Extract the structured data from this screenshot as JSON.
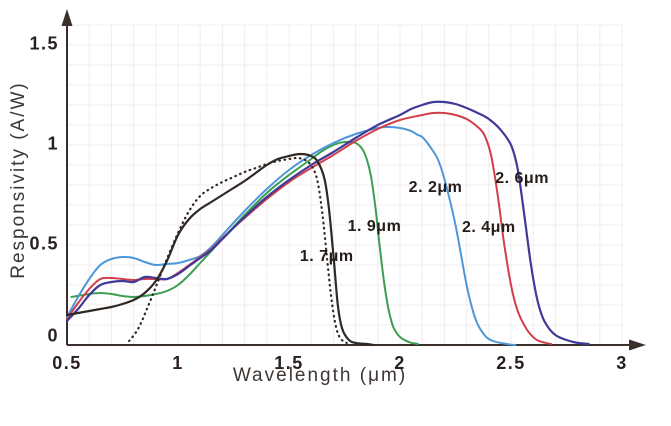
{
  "style": {
    "background": "#ffffff",
    "axis_color": "#3a2f2b",
    "grid_color": "#f2ecec",
    "tick_text_color": "#2a211e",
    "axis_title_color": "#3e3733",
    "curve_label_color": "#241d1a"
  },
  "chart_data": {
    "type": "line",
    "title": "",
    "xlabel": "Wavelength (μm)",
    "ylabel": "Responsivity (A/W)",
    "xlim": [
      0.5,
      3.05
    ],
    "ylim": [
      0,
      1.6
    ],
    "grid": {
      "visible": true,
      "step_x": 0.1,
      "step_y": 0.1
    },
    "legend_position": "none (labels placed next to curves)",
    "x_ticks": [
      {
        "label": "0.5",
        "value": 0.5
      },
      {
        "label": "1",
        "value": 1
      },
      {
        "label": "1.5",
        "value": 1.5
      },
      {
        "label": "2",
        "value": 2
      },
      {
        "label": "2.5",
        "value": 2.5
      },
      {
        "label": "3",
        "value": 3
      }
    ],
    "y_ticks": [
      {
        "label": "1.5",
        "value": 1.5
      },
      {
        "label": "1",
        "value": 1
      },
      {
        "label": "0.5",
        "value": 0.5
      },
      {
        "label": "0",
        "value": 0
      }
    ],
    "series": [
      {
        "id": "1-9um",
        "name": "1.9μm cutoff",
        "label": "1. 9μm",
        "label_pos": [
          1.885,
          0.59
        ],
        "color": "#3c9e50",
        "width": 2,
        "dash": "",
        "points": [
          [
            0.52,
            0.24
          ],
          [
            0.6,
            0.255
          ],
          [
            0.65,
            0.26
          ],
          [
            0.7,
            0.255
          ],
          [
            0.75,
            0.245
          ],
          [
            0.8,
            0.24
          ],
          [
            0.85,
            0.245
          ],
          [
            0.9,
            0.255
          ],
          [
            0.95,
            0.27
          ],
          [
            1.0,
            0.3
          ],
          [
            1.05,
            0.35
          ],
          [
            1.1,
            0.41
          ],
          [
            1.15,
            0.47
          ],
          [
            1.2,
            0.53
          ],
          [
            1.25,
            0.59
          ],
          [
            1.3,
            0.65
          ],
          [
            1.4,
            0.76
          ],
          [
            1.5,
            0.85
          ],
          [
            1.55,
            0.89
          ],
          [
            1.6,
            0.93
          ],
          [
            1.65,
            0.97
          ],
          [
            1.7,
            1.0
          ],
          [
            1.75,
            1.015
          ],
          [
            1.8,
            1.01
          ],
          [
            1.83,
            0.98
          ],
          [
            1.85,
            0.93
          ],
          [
            1.87,
            0.84
          ],
          [
            1.89,
            0.68
          ],
          [
            1.91,
            0.48
          ],
          [
            1.93,
            0.3
          ],
          [
            1.95,
            0.17
          ],
          [
            1.97,
            0.09
          ],
          [
            2.0,
            0.04
          ],
          [
            2.04,
            0.015
          ],
          [
            2.08,
            0.005
          ]
        ]
      },
      {
        "id": "2-2um",
        "name": "2.2μm cutoff",
        "label": "2. 2μm",
        "label_pos": [
          2.16,
          0.785
        ],
        "color": "#4e97d9",
        "width": 2,
        "dash": "",
        "points": [
          [
            0.5,
            0.14
          ],
          [
            0.55,
            0.24
          ],
          [
            0.6,
            0.33
          ],
          [
            0.65,
            0.4
          ],
          [
            0.7,
            0.43
          ],
          [
            0.75,
            0.44
          ],
          [
            0.8,
            0.435
          ],
          [
            0.85,
            0.415
          ],
          [
            0.9,
            0.4
          ],
          [
            0.95,
            0.405
          ],
          [
            1.0,
            0.41
          ],
          [
            1.05,
            0.425
          ],
          [
            1.1,
            0.445
          ],
          [
            1.15,
            0.49
          ],
          [
            1.2,
            0.55
          ],
          [
            1.3,
            0.67
          ],
          [
            1.4,
            0.78
          ],
          [
            1.5,
            0.875
          ],
          [
            1.6,
            0.95
          ],
          [
            1.7,
            1.01
          ],
          [
            1.8,
            1.055
          ],
          [
            1.9,
            1.085
          ],
          [
            1.95,
            1.09
          ],
          [
            2.0,
            1.085
          ],
          [
            2.05,
            1.07
          ],
          [
            2.08,
            1.05
          ],
          [
            2.1,
            1.04
          ],
          [
            2.13,
            1.0
          ],
          [
            2.17,
            0.93
          ],
          [
            2.2,
            0.83
          ],
          [
            2.25,
            0.6
          ],
          [
            2.3,
            0.3
          ],
          [
            2.34,
            0.13
          ],
          [
            2.38,
            0.05
          ],
          [
            2.42,
            0.02
          ],
          [
            2.48,
            0.005
          ],
          [
            2.52,
            0.0
          ]
        ]
      },
      {
        "id": "2-4um",
        "name": "2.4μm cutoff",
        "label": "2. 4μm",
        "label_pos": [
          2.4,
          0.585
        ],
        "color": "#d23f48",
        "width": 2,
        "dash": "",
        "points": [
          [
            0.5,
            0.13
          ],
          [
            0.55,
            0.21
          ],
          [
            0.6,
            0.28
          ],
          [
            0.65,
            0.33
          ],
          [
            0.7,
            0.335
          ],
          [
            0.75,
            0.33
          ],
          [
            0.8,
            0.325
          ],
          [
            0.85,
            0.33
          ],
          [
            0.9,
            0.33
          ],
          [
            0.95,
            0.33
          ],
          [
            1.0,
            0.36
          ],
          [
            1.05,
            0.4
          ],
          [
            1.1,
            0.44
          ],
          [
            1.15,
            0.48
          ],
          [
            1.2,
            0.535
          ],
          [
            1.3,
            0.635
          ],
          [
            1.4,
            0.73
          ],
          [
            1.5,
            0.815
          ],
          [
            1.6,
            0.885
          ],
          [
            1.7,
            0.95
          ],
          [
            1.8,
            1.02
          ],
          [
            1.9,
            1.08
          ],
          [
            2.0,
            1.125
          ],
          [
            2.1,
            1.15
          ],
          [
            2.15,
            1.16
          ],
          [
            2.2,
            1.16
          ],
          [
            2.25,
            1.15
          ],
          [
            2.3,
            1.13
          ],
          [
            2.35,
            1.09
          ],
          [
            2.38,
            1.05
          ],
          [
            2.41,
            0.95
          ],
          [
            2.44,
            0.75
          ],
          [
            2.47,
            0.5
          ],
          [
            2.5,
            0.3
          ],
          [
            2.53,
            0.17
          ],
          [
            2.57,
            0.08
          ],
          [
            2.61,
            0.03
          ],
          [
            2.65,
            0.012
          ],
          [
            2.68,
            0.005
          ]
        ]
      },
      {
        "id": "2-6um",
        "name": "2.6μm cutoff",
        "label": "2. 6μm",
        "label_pos": [
          2.55,
          0.83
        ],
        "color": "#3f3a99",
        "width": 2.2,
        "dash": "",
        "points": [
          [
            0.5,
            0.12
          ],
          [
            0.55,
            0.18
          ],
          [
            0.6,
            0.25
          ],
          [
            0.65,
            0.3
          ],
          [
            0.7,
            0.315
          ],
          [
            0.75,
            0.32
          ],
          [
            0.8,
            0.315
          ],
          [
            0.85,
            0.34
          ],
          [
            0.9,
            0.335
          ],
          [
            0.95,
            0.33
          ],
          [
            1.0,
            0.355
          ],
          [
            1.05,
            0.395
          ],
          [
            1.1,
            0.435
          ],
          [
            1.15,
            0.475
          ],
          [
            1.2,
            0.53
          ],
          [
            1.3,
            0.64
          ],
          [
            1.4,
            0.74
          ],
          [
            1.5,
            0.825
          ],
          [
            1.6,
            0.9
          ],
          [
            1.7,
            0.965
          ],
          [
            1.8,
            1.035
          ],
          [
            1.9,
            1.1
          ],
          [
            2.0,
            1.15
          ],
          [
            2.05,
            1.18
          ],
          [
            2.1,
            1.2
          ],
          [
            2.15,
            1.215
          ],
          [
            2.2,
            1.215
          ],
          [
            2.25,
            1.205
          ],
          [
            2.3,
            1.185
          ],
          [
            2.35,
            1.16
          ],
          [
            2.4,
            1.13
          ],
          [
            2.45,
            1.08
          ],
          [
            2.5,
            1.0
          ],
          [
            2.53,
            0.88
          ],
          [
            2.56,
            0.65
          ],
          [
            2.59,
            0.4
          ],
          [
            2.62,
            0.22
          ],
          [
            2.65,
            0.12
          ],
          [
            2.7,
            0.05
          ],
          [
            2.78,
            0.015
          ],
          [
            2.85,
            0.005
          ]
        ]
      },
      {
        "id": "dotted-ref",
        "name": "dotted reference curve",
        "label": "",
        "label_pos": null,
        "color": "#2f2823",
        "width": 2.2,
        "dash": "0.6 4.6",
        "points": [
          [
            0.78,
            0.02
          ],
          [
            0.82,
            0.08
          ],
          [
            0.86,
            0.18
          ],
          [
            0.9,
            0.29
          ],
          [
            0.95,
            0.43
          ],
          [
            1.0,
            0.56
          ],
          [
            1.05,
            0.67
          ],
          [
            1.1,
            0.745
          ],
          [
            1.15,
            0.785
          ],
          [
            1.2,
            0.815
          ],
          [
            1.25,
            0.84
          ],
          [
            1.3,
            0.865
          ],
          [
            1.35,
            0.885
          ],
          [
            1.4,
            0.905
          ],
          [
            1.45,
            0.92
          ],
          [
            1.5,
            0.93
          ],
          [
            1.54,
            0.935
          ],
          [
            1.58,
            0.92
          ],
          [
            1.61,
            0.88
          ],
          [
            1.63,
            0.81
          ],
          [
            1.65,
            0.66
          ],
          [
            1.67,
            0.45
          ],
          [
            1.69,
            0.24
          ],
          [
            1.71,
            0.1
          ],
          [
            1.73,
            0.035
          ],
          [
            1.76,
            0.01
          ]
        ]
      },
      {
        "id": "1-7um",
        "name": "1.7μm cutoff",
        "label": "1. 7μm",
        "label_pos": [
          1.67,
          0.44
        ],
        "color": "#2f2823",
        "width": 2.2,
        "dash": "",
        "points": [
          [
            0.5,
            0.15
          ],
          [
            0.55,
            0.16
          ],
          [
            0.6,
            0.17
          ],
          [
            0.65,
            0.18
          ],
          [
            0.7,
            0.19
          ],
          [
            0.75,
            0.205
          ],
          [
            0.8,
            0.225
          ],
          [
            0.85,
            0.26
          ],
          [
            0.9,
            0.32
          ],
          [
            0.95,
            0.42
          ],
          [
            1.0,
            0.55
          ],
          [
            1.05,
            0.63
          ],
          [
            1.1,
            0.68
          ],
          [
            1.15,
            0.715
          ],
          [
            1.2,
            0.75
          ],
          [
            1.25,
            0.785
          ],
          [
            1.3,
            0.82
          ],
          [
            1.35,
            0.86
          ],
          [
            1.4,
            0.9
          ],
          [
            1.45,
            0.93
          ],
          [
            1.5,
            0.945
          ],
          [
            1.55,
            0.955
          ],
          [
            1.6,
            0.945
          ],
          [
            1.63,
            0.915
          ],
          [
            1.66,
            0.83
          ],
          [
            1.68,
            0.68
          ],
          [
            1.7,
            0.45
          ],
          [
            1.72,
            0.2
          ],
          [
            1.74,
            0.08
          ],
          [
            1.77,
            0.025
          ],
          [
            1.8,
            0.01
          ],
          [
            1.85,
            0.005
          ],
          [
            1.88,
            0.0
          ]
        ]
      }
    ]
  }
}
